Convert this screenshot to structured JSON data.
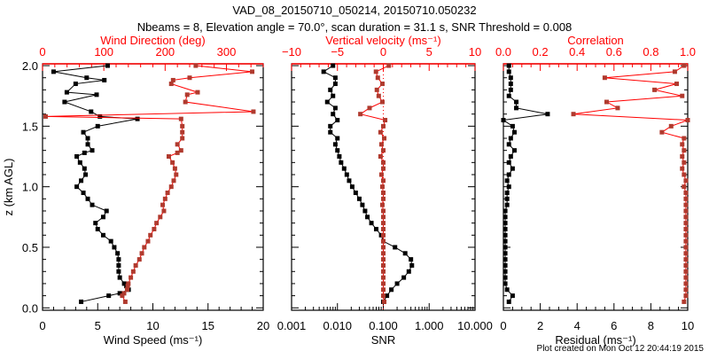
{
  "chart_data": {
    "type": "line",
    "title": "VAD_08_20150710_050214, 20150710.050232",
    "subtitle": "Nbeams = 8, Elevation angle = 70.0°, scan duration = 31.1 s, SNR Threshold = 0.008",
    "ylabel": "z (km AGL)",
    "ylim": [
      -0.02,
      2.015
    ],
    "yticks": [
      "0.0",
      "0.5",
      "1.0",
      "1.5",
      "2.0"
    ],
    "footer": "Plot created on Mon Oct 12 20:44:19 2015",
    "colors": {
      "primary": "#000000",
      "secondary": "#b03a2e",
      "axis_top": "#ff0000"
    },
    "panels": [
      {
        "bottom_label": "Wind Speed (ms⁻¹)",
        "bottom_lim": [
          0,
          20
        ],
        "bottom_ticks": [
          "0",
          "5",
          "10",
          "15",
          "20"
        ],
        "top_label": "Wind Direction (deg)",
        "top_lim": [
          0,
          360
        ],
        "top_ticks": [
          "0",
          "100",
          "200",
          "300"
        ],
        "z": [
          0.05,
          0.1,
          0.12,
          0.15,
          0.18,
          0.2,
          0.25,
          0.3,
          0.35,
          0.4,
          0.45,
          0.5,
          0.55,
          0.6,
          0.65,
          0.7,
          0.75,
          0.8,
          0.85,
          0.9,
          0.95,
          1.0,
          1.05,
          1.1,
          1.15,
          1.2,
          1.25,
          1.28,
          1.3,
          1.35,
          1.4,
          1.45,
          1.5,
          1.56,
          1.58,
          1.62,
          1.7,
          1.76,
          1.78,
          1.85,
          1.88,
          1.9,
          1.95,
          2.0
        ],
        "series": [
          {
            "name": "Wind Speed",
            "axis": "bottom",
            "values": [
              3.5,
              6.0,
              7.0,
              7.8,
              7.6,
              7.4,
              7.0,
              6.9,
              6.9,
              6.9,
              6.8,
              6.5,
              6.2,
              5.5,
              5.0,
              4.8,
              5.5,
              5.8,
              4.5,
              4.1,
              3.7,
              3.1,
              3.5,
              3.9,
              3.8,
              3.4,
              3.1,
              3.8,
              4.5,
              4.1,
              4.1,
              3.7,
              5.0,
              8.6,
              5.2,
              4.4,
              2.0,
              4.9,
              2.2,
              3.0,
              5.6,
              4.0,
              1.0,
              5.9
            ]
          },
          {
            "name": "Wind Direction",
            "axis": "top",
            "values": [
              135,
              130,
              133,
              138,
              139,
              140,
              144,
              148,
              152,
              158,
              162,
              166,
              172,
              176,
              182,
              186,
              192,
              198,
              196,
              200,
              204,
              210,
              214,
              218,
              216,
              212,
              206,
              220,
              226,
              220,
              228,
              228,
              228,
              226,
              5,
              344,
              233,
              236,
              253,
              210,
              213,
              240,
              342,
              250
            ]
          }
        ]
      },
      {
        "bottom_label": "SNR",
        "bottom_scale": "log",
        "bottom_lim": [
          0.001,
          10
        ],
        "bottom_ticks": [
          "0.001",
          "0.010",
          "0.100",
          "1.000",
          "10.000"
        ],
        "top_label": "Vertical velocity (ms⁻¹)",
        "top_lim": [
          -10,
          10
        ],
        "top_ticks": [
          "−10",
          "−5",
          "0",
          "5",
          "10"
        ],
        "z": [
          0.05,
          0.1,
          0.15,
          0.2,
          0.25,
          0.3,
          0.35,
          0.4,
          0.45,
          0.5,
          0.55,
          0.6,
          0.65,
          0.7,
          0.75,
          0.8,
          0.85,
          0.9,
          0.95,
          1.0,
          1.05,
          1.1,
          1.15,
          1.2,
          1.25,
          1.3,
          1.35,
          1.4,
          1.45,
          1.5,
          1.55,
          1.6,
          1.65,
          1.7,
          1.75,
          1.8,
          1.85,
          1.9,
          1.95,
          2.0
        ],
        "series": [
          {
            "name": "SNR",
            "axis": "bottom",
            "values": [
              0.1,
              0.12,
              0.15,
              0.2,
              0.28,
              0.36,
              0.42,
              0.4,
              0.3,
              0.18,
              0.1,
              0.09,
              0.07,
              0.055,
              0.045,
              0.04,
              0.035,
              0.03,
              0.025,
              0.021,
              0.018,
              0.016,
              0.014,
              0.012,
              0.011,
              0.01,
              0.009,
              0.01,
              0.007,
              0.007,
              0.01,
              0.008,
              0.009,
              0.006,
              0.008,
              0.007,
              0.009,
              0.009,
              0.005,
              0.008
            ]
          },
          {
            "name": "Vertical velocity",
            "axis": "top",
            "values": [
              0.1,
              0,
              0,
              0,
              0,
              0,
              0,
              0,
              0,
              0,
              0,
              0,
              0,
              0,
              0,
              0,
              -0.1,
              0,
              0,
              -0.1,
              0,
              -0.2,
              0,
              0,
              -0.3,
              0,
              -0.2,
              0.1,
              -0.3,
              0,
              0.2,
              -2.5,
              -1.5,
              -0.1,
              -0.5,
              -0.7,
              -0.1,
              -0.6,
              -0.8,
              0.6
            ]
          }
        ]
      },
      {
        "bottom_label": "Residual (ms⁻¹)",
        "bottom_lim": [
          0,
          10
        ],
        "bottom_ticks": [
          "0",
          "2",
          "4",
          "6",
          "8",
          "10"
        ],
        "top_label": "Correlation",
        "top_lim": [
          0,
          1
        ],
        "top_ticks": [
          "0.0",
          "0.2",
          "0.4",
          "0.6",
          "0.8",
          "1.0"
        ],
        "z": [
          0.05,
          0.1,
          0.15,
          0.2,
          0.25,
          0.3,
          0.35,
          0.4,
          0.45,
          0.5,
          0.55,
          0.6,
          0.65,
          0.7,
          0.75,
          0.8,
          0.85,
          0.9,
          0.95,
          1.0,
          1.05,
          1.1,
          1.15,
          1.2,
          1.25,
          1.3,
          1.35,
          1.4,
          1.45,
          1.5,
          1.55,
          1.6,
          1.65,
          1.7,
          1.75,
          1.8,
          1.85,
          1.9,
          1.95,
          2.0
        ],
        "series": [
          {
            "name": "Residual",
            "axis": "bottom",
            "values": [
              0.3,
              0.5,
              0.2,
              0.1,
              0.1,
              0.1,
              0.1,
              0.1,
              0.1,
              0.1,
              0.1,
              0.1,
              0.1,
              0.1,
              0.1,
              0.1,
              0.2,
              0.2,
              0.2,
              0.3,
              0.2,
              0.3,
              0.5,
              0.3,
              0.4,
              0.6,
              0.3,
              0.4,
              0.6,
              0.5,
              0.0,
              2.4,
              0.7,
              0.7,
              0.3,
              0.4,
              0.4,
              0.4,
              0.3,
              0.3
            ]
          },
          {
            "name": "Correlation",
            "axis": "top",
            "values": [
              0.98,
              0.99,
              0.99,
              0.99,
              0.99,
              0.99,
              0.99,
              0.99,
              0.99,
              0.99,
              0.99,
              0.99,
              0.99,
              0.99,
              0.99,
              0.99,
              0.99,
              0.99,
              0.99,
              0.98,
              0.99,
              0.98,
              0.97,
              0.98,
              0.97,
              0.98,
              0.97,
              0.98,
              0.86,
              0.91,
              1.0,
              0.38,
              0.62,
              0.56,
              0.97,
              0.82,
              0.94,
              0.55,
              0.93,
              0.98
            ]
          }
        ]
      }
    ]
  }
}
